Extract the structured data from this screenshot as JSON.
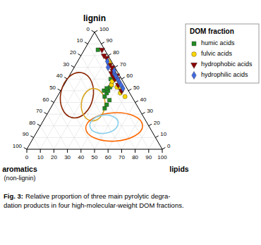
{
  "chart_data": {
    "type": "ternary",
    "title": "lignin",
    "left_axis": {
      "label": "aromatics",
      "sublabel": "(non-lignin)",
      "lim": [
        0,
        100
      ],
      "ticks": [
        0,
        10,
        20,
        30,
        40,
        50,
        60,
        70,
        80,
        90,
        100
      ]
    },
    "right_axis": {
      "lim": [
        0,
        100
      ],
      "ticks": [
        0,
        10,
        20,
        30,
        40,
        50,
        60,
        70,
        80,
        90,
        100
      ]
    },
    "bottom_axis": {
      "label": "lipids",
      "lim": [
        0,
        100
      ],
      "ticks": [
        0,
        10,
        20,
        30,
        40,
        50,
        60,
        70,
        80,
        90,
        100
      ]
    },
    "grid": true,
    "legend": "right",
    "legend_title": "DOM fraction",
    "series": [
      {
        "name": "humic acids",
        "color": "#228B22",
        "marker": "square",
        "values": [
          [
            35,
            25,
            40
          ],
          [
            38,
            22,
            40
          ],
          [
            42,
            18,
            40
          ],
          [
            45,
            20,
            35
          ],
          [
            48,
            17,
            35
          ],
          [
            50,
            15,
            35
          ],
          [
            50,
            18,
            32
          ],
          [
            52,
            15,
            33
          ],
          [
            53,
            12,
            35
          ],
          [
            55,
            10,
            35
          ],
          [
            60,
            8,
            32
          ],
          [
            85,
            5,
            10
          ]
        ]
      },
      {
        "name": "fulvic acids",
        "color": "#FFD700",
        "marker": "circle",
        "values": [
          [
            45,
            5,
            50
          ],
          [
            48,
            7,
            45
          ],
          [
            50,
            5,
            45
          ],
          [
            52,
            5,
            43
          ],
          [
            53,
            7,
            40
          ],
          [
            55,
            5,
            40
          ],
          [
            55,
            10,
            35
          ],
          [
            58,
            8,
            34
          ],
          [
            60,
            5,
            35
          ],
          [
            63,
            5,
            32
          ],
          [
            65,
            3,
            32
          ],
          [
            73,
            2,
            25
          ],
          [
            75,
            2,
            23
          ]
        ]
      },
      {
        "name": "hydrophobic acids",
        "color": "#8B0000",
        "marker": "triangle-down",
        "values": [
          [
            50,
            5,
            45
          ],
          [
            55,
            5,
            40
          ],
          [
            60,
            3,
            37
          ],
          [
            60,
            5,
            35
          ],
          [
            62,
            5,
            33
          ],
          [
            63,
            2,
            35
          ],
          [
            65,
            5,
            30
          ],
          [
            67,
            3,
            30
          ],
          [
            70,
            2,
            28
          ],
          [
            72,
            3,
            25
          ],
          [
            78,
            2,
            20
          ],
          [
            80,
            3,
            17
          ],
          [
            85,
            2,
            13
          ]
        ]
      },
      {
        "name": "hydrophilic acids",
        "color": "#4169E1",
        "marker": "diamond",
        "values": [
          [
            52,
            3,
            45
          ],
          [
            55,
            3,
            42
          ],
          [
            58,
            3,
            39
          ],
          [
            60,
            3,
            37
          ],
          [
            62,
            3,
            35
          ],
          [
            63,
            3,
            34
          ],
          [
            65,
            3,
            32
          ],
          [
            67,
            2,
            31
          ],
          [
            70,
            5,
            25
          ],
          [
            75,
            3,
            22
          ]
        ]
      }
    ],
    "ellipses": [
      {
        "cx": 0.37,
        "cy": 0.4,
        "width": 0.24,
        "height": 0.34,
        "angle": -12,
        "color": "#8B2500"
      },
      {
        "cx": 0.49,
        "cy": 0.33,
        "width": 0.175,
        "height": 0.24,
        "angle": -5,
        "color": "#DAA520"
      },
      {
        "cx": 0.645,
        "cy": 0.165,
        "width": 0.42,
        "height": 0.21,
        "angle": 3,
        "color": "#FF6600"
      },
      {
        "cx": 0.57,
        "cy": 0.185,
        "width": 0.21,
        "height": 0.135,
        "angle": 8,
        "color": "#87CEEB"
      }
    ],
    "caption": {
      "label": "Fig. 3:",
      "lines": [
        "Relative proportion of three main pyrolytic degra-",
        "dation products in four high-molecular-weight DOM fractions."
      ]
    }
  }
}
